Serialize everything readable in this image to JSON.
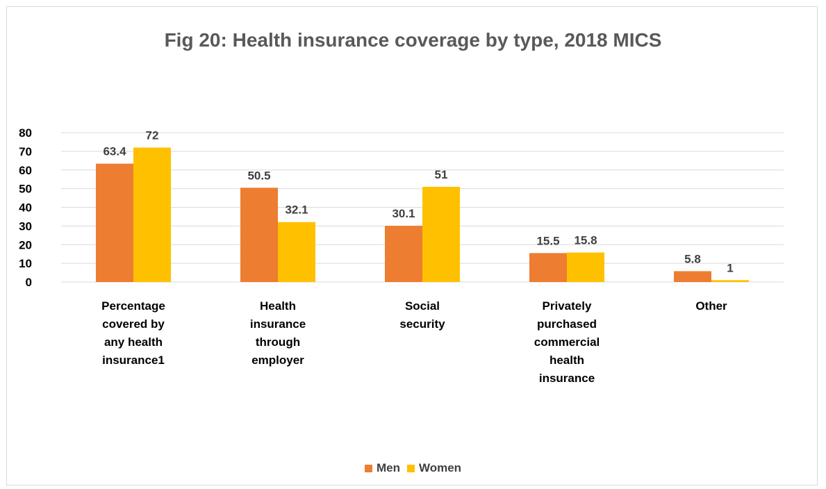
{
  "chart_data": {
    "type": "bar",
    "title": "Fig 20: Health insurance coverage by type, 2018 MICS",
    "categories": [
      [
        "Percentage",
        "covered by",
        "any health",
        "insurance1"
      ],
      [
        "Health",
        "insurance",
        "through",
        "employer"
      ],
      [
        "Social",
        "security"
      ],
      [
        "Privately",
        "purchased",
        "commercial",
        "health",
        "insurance"
      ],
      [
        "Other"
      ]
    ],
    "series": [
      {
        "name": "Men",
        "values": [
          63.4,
          50.5,
          30.1,
          15.5,
          5.8
        ],
        "color": "#ed7d31"
      },
      {
        "name": "Women",
        "values": [
          72,
          32.1,
          51,
          15.8,
          1
        ],
        "color": "#ffc000"
      }
    ],
    "ylim": [
      0,
      80
    ],
    "yticks": [
      "0",
      "10",
      "20",
      "30",
      "40",
      "50",
      "60",
      "70",
      "80"
    ],
    "grid": true,
    "legend_position": "bottom"
  }
}
